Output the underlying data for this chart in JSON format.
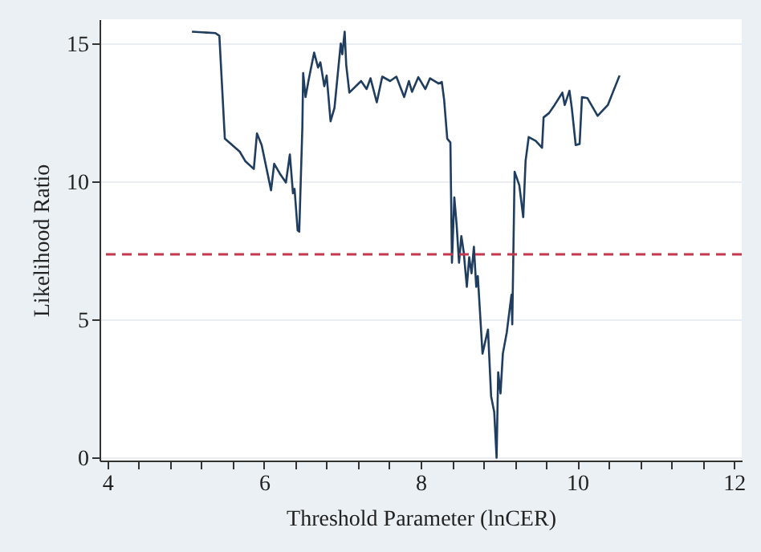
{
  "chart_data": {
    "type": "line",
    "xlabel": "Threshold Parameter (lnCER)",
    "ylabel": "Likelihood Ratio",
    "x": [
      5.08,
      5.38,
      5.43,
      5.5,
      5.69,
      5.76,
      5.87,
      5.91,
      5.97,
      6.09,
      6.13,
      6.21,
      6.28,
      6.33,
      6.37,
      6.39,
      6.43,
      6.45,
      6.49,
      6.5,
      6.53,
      6.57,
      6.64,
      6.69,
      6.72,
      6.77,
      6.8,
      6.85,
      6.9,
      6.94,
      6.98,
      7.0,
      7.03,
      7.05,
      7.09,
      7.24,
      7.31,
      7.36,
      7.44,
      7.51,
      7.61,
      7.69,
      7.79,
      7.85,
      7.89,
      7.97,
      8.06,
      8.12,
      8.23,
      8.27,
      8.3,
      8.34,
      8.38,
      8.4,
      8.43,
      8.46,
      8.49,
      8.52,
      8.55,
      8.59,
      8.62,
      8.65,
      8.68,
      8.71,
      8.73,
      8.79,
      8.86,
      8.9,
      8.94,
      8.97,
      8.99,
      9.02,
      9.05,
      9.1,
      9.16,
      9.17,
      9.2,
      9.26,
      9.31,
      9.34,
      9.38,
      9.47,
      9.55,
      9.57,
      9.64,
      9.71,
      9.81,
      9.84,
      9.9,
      9.93,
      9.98,
      10.03,
      10.06,
      10.13,
      10.26,
      10.39,
      10.54
    ],
    "series": [
      {
        "color": "#1f3d5f",
        "values": [
          15.45,
          15.4,
          15.3,
          11.57,
          11.1,
          10.76,
          10.47,
          11.76,
          11.34,
          9.7,
          10.66,
          10.27,
          9.98,
          11.0,
          9.59,
          9.75,
          8.24,
          8.2,
          12.0,
          13.95,
          13.08,
          13.7,
          14.69,
          14.15,
          14.34,
          13.47,
          13.86,
          12.2,
          12.69,
          13.86,
          15.02,
          14.63,
          15.45,
          14.24,
          13.24,
          13.66,
          13.37,
          13.76,
          12.89,
          13.82,
          13.66,
          13.82,
          13.08,
          13.66,
          13.27,
          13.8,
          13.37,
          13.76,
          13.57,
          13.63,
          12.98,
          11.57,
          11.43,
          7.07,
          9.44,
          8.43,
          7.07,
          8.04,
          7.46,
          6.2,
          7.27,
          6.69,
          7.65,
          6.2,
          6.59,
          3.78,
          4.65,
          2.23,
          1.65,
          0,
          3.1,
          2.33,
          3.78,
          4.55,
          5.91,
          4.84,
          10.37,
          9.88,
          8.72,
          10.76,
          11.63,
          11.49,
          11.24,
          12.34,
          12.5,
          12.79,
          13.24,
          12.79,
          13.31,
          12.69,
          11.34,
          11.38,
          13.08,
          13.04,
          12.4,
          12.79,
          13.86
        ]
      }
    ],
    "xlim": [
      3.9,
      12.1
    ],
    "ylim": [
      -0.1,
      15.9
    ],
    "xticks": [
      4,
      {
        "value": 4.4,
        "label": null
      },
      {
        "value": 4.8,
        "label": null
      },
      {
        "value": 5.2,
        "label": null
      },
      {
        "value": 5.6,
        "label": null
      },
      6,
      {
        "value": 6.4,
        "label": null
      },
      {
        "value": 6.8,
        "label": null
      },
      {
        "value": 7.2,
        "label": null
      },
      {
        "value": 7.6,
        "label": null
      },
      8,
      {
        "value": 8.4,
        "label": null
      },
      {
        "value": 8.8,
        "label": null
      },
      {
        "value": 9.2,
        "label": null
      },
      {
        "value": 9.6,
        "label": null
      },
      10,
      {
        "value": 10.4,
        "label": null
      },
      {
        "value": 10.8,
        "label": null
      },
      {
        "value": 11.2,
        "label": null
      },
      {
        "value": 11.6,
        "label": null
      },
      12
    ],
    "yticks": [
      0,
      5,
      10,
      15
    ],
    "grid": "y",
    "line_style": "solid",
    "marker": "none",
    "ref_lines": [
      {
        "axis": "y",
        "value": 7.38,
        "color": "#c2384f",
        "line_style": "dashed"
      }
    ]
  }
}
